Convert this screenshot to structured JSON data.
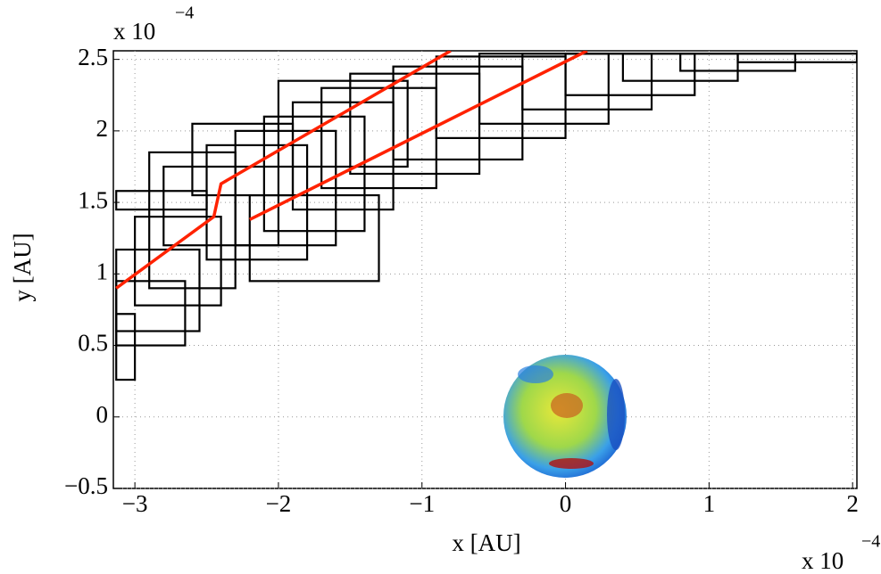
{
  "chart_data": {
    "type": "trajectory",
    "xlabel": "x [AU]",
    "ylabel": "y [AU]",
    "x_exponent": {
      "base": "x 10",
      "power": "−4"
    },
    "y_exponent": {
      "base": "x 10",
      "power": "−4"
    },
    "xlim": [
      -3.15,
      2.03
    ],
    "ylim": [
      -0.5,
      2.56
    ],
    "xticks": [
      {
        "value": -3,
        "label": "−3"
      },
      {
        "value": -2,
        "label": "−2"
      },
      {
        "value": -1,
        "label": "−1"
      },
      0,
      1,
      2
    ],
    "yticks": [
      {
        "value": -0.5,
        "label": "−0.5"
      },
      0,
      0.5,
      1,
      1.5,
      2,
      2.5
    ],
    "grid": true,
    "box_color": "#000000",
    "boxes": [
      [
        -3.13,
        0.26,
        -3.0,
        0.72
      ],
      [
        -3.13,
        0.5,
        -2.65,
        0.95
      ],
      [
        -3.13,
        0.6,
        -2.55,
        1.17
      ],
      [
        -3.0,
        0.78,
        -2.4,
        1.4
      ],
      [
        -2.9,
        0.9,
        -2.3,
        1.85
      ],
      [
        -2.8,
        1.2,
        -2.0,
        1.75
      ],
      [
        -2.5,
        1.1,
        -1.8,
        1.9
      ],
      [
        -2.3,
        1.2,
        -1.6,
        2.0
      ],
      [
        -2.1,
        1.3,
        -1.4,
        2.1
      ],
      [
        -1.9,
        1.45,
        -1.2,
        2.2
      ],
      [
        -1.7,
        1.6,
        -0.9,
        2.3
      ],
      [
        -1.5,
        1.7,
        -0.6,
        2.4
      ],
      [
        -1.2,
        1.8,
        -0.3,
        2.45
      ],
      [
        -0.9,
        1.95,
        0.0,
        2.52
      ],
      [
        -0.6,
        2.05,
        0.3,
        2.54
      ],
      [
        -0.3,
        2.15,
        0.6,
        2.54
      ],
      [
        0.0,
        2.25,
        0.9,
        2.54
      ],
      [
        0.4,
        2.35,
        1.2,
        2.54
      ],
      [
        0.8,
        2.42,
        1.6,
        2.54
      ],
      [
        1.2,
        2.48,
        2.03,
        2.54
      ],
      [
        -3.13,
        1.45,
        -2.5,
        1.58
      ],
      [
        -2.2,
        0.95,
        -1.3,
        1.55
      ],
      [
        -2.6,
        1.55,
        -1.9,
        2.05
      ],
      [
        -2.0,
        1.75,
        -1.1,
        2.35
      ]
    ],
    "series": [
      {
        "color": "#ff2200",
        "x": [
          -3.13,
          -2.45,
          -2.4,
          -0.8
        ],
        "y": [
          0.9,
          1.4,
          1.63,
          2.56
        ]
      },
      {
        "color": "#ff2200",
        "x": [
          -2.2,
          0.15
        ],
        "y": [
          1.38,
          2.56
        ]
      }
    ]
  }
}
